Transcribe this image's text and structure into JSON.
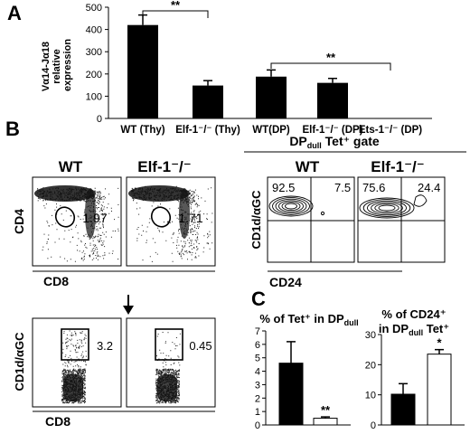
{
  "panels": {
    "a": "A",
    "b": "B",
    "c": "C"
  },
  "chart_data": [
    {
      "type": "bar",
      "panel": "A",
      "ylabel_lines": [
        "Vα14-Jα18",
        "relative",
        "expression"
      ],
      "ylim": [
        0,
        500
      ],
      "yticks": [
        0,
        100,
        200,
        300,
        400,
        500
      ],
      "categories": [
        "WT (Thy)",
        "Elf-1⁻/⁻ (Thy)",
        "WT(DP)",
        "Elf-1⁻/⁻ (DP)",
        "Ets-1⁻/⁻ (DP)"
      ],
      "values": [
        420,
        148,
        188,
        160,
        2
      ],
      "errors": [
        45,
        22,
        30,
        20,
        1
      ],
      "significance": [
        {
          "from": 0,
          "to": 1,
          "label": "**"
        },
        {
          "from": 2,
          "to": 4,
          "label": "**"
        }
      ],
      "bar_color": "#000000"
    },
    {
      "type": "scatter",
      "panel": "B-top",
      "description_label": "WT vs Elf-1 CD4/CD8 flow plots",
      "plots": [
        {
          "title": "WT",
          "gate_value": "1.97"
        },
        {
          "title": "Elf-1⁻/⁻",
          "gate_value": "1.71"
        }
      ],
      "ylabel": "CD4",
      "xlabel": "CD8"
    },
    {
      "type": "scatter",
      "panel": "B-bottom",
      "plots": [
        {
          "gate_value": "3.2"
        },
        {
          "gate_value": "0.45"
        }
      ],
      "ylabel": "CD1d/αGC",
      "xlabel": "CD8"
    },
    {
      "type": "scatter",
      "panel": "B-right",
      "gate_title_main": "DP",
      "gate_title_sub": "dull",
      "gate_title_rest": " Tet⁺ gate",
      "plots": [
        {
          "title": "WT",
          "quadrants": {
            "upper_left": "92.5",
            "upper_right": "7.5"
          }
        },
        {
          "title": "Elf-1⁻/⁻",
          "quadrants": {
            "upper_left": "75.6",
            "upper_right": "24.4"
          }
        }
      ],
      "ylabel": "CD1d/αGC",
      "xlabel": "CD24"
    },
    {
      "type": "bar",
      "panel": "C-left",
      "title_lines": [
        "% of Tet⁺ in DP",
        "dull"
      ],
      "ylim": [
        0,
        7
      ],
      "yticks": [
        0,
        1,
        2,
        3,
        4,
        5,
        6,
        7
      ],
      "values": [
        4.6,
        0.5
      ],
      "errors": [
        1.6,
        0.1
      ],
      "bar_fills": [
        "#000000",
        "#ffffff"
      ],
      "annotations": [
        "",
        "**"
      ]
    },
    {
      "type": "bar",
      "panel": "C-right",
      "title_lines": [
        "% of CD24⁺",
        "in DP",
        "dull",
        " Tet⁺"
      ],
      "ylim": [
        0,
        30
      ],
      "yticks": [
        0,
        10,
        20,
        30
      ],
      "values": [
        10.2,
        23.5
      ],
      "errors": [
        3.5,
        1.5
      ],
      "bar_fills": [
        "#000000",
        "#ffffff"
      ],
      "annotations": [
        "",
        "*"
      ]
    }
  ]
}
